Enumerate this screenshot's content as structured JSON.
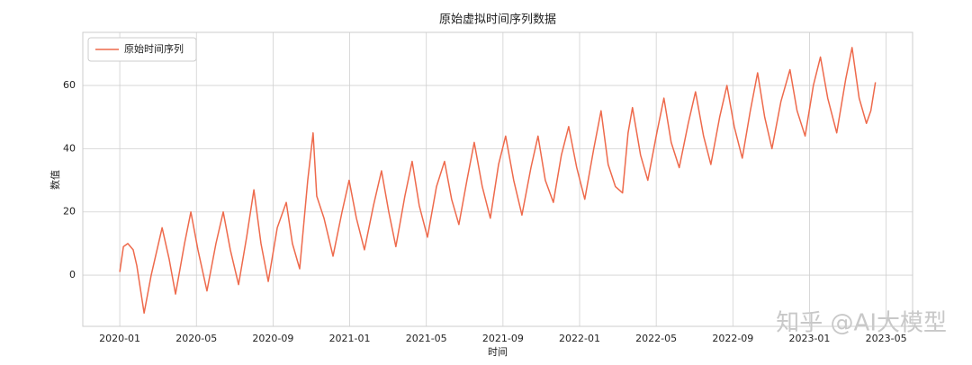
{
  "chart_data": {
    "type": "line",
    "title": "原始虚拟时间序列数据",
    "x_label": "时间",
    "y_label": "数值",
    "watermark": "知乎 @AI大模型",
    "x": [
      0,
      0.19,
      0.42,
      0.7,
      0.89,
      1.27,
      1.64,
      2.21,
      2.58,
      2.91,
      3.38,
      3.71,
      4.08,
      4.55,
      5.02,
      5.4,
      5.77,
      6.2,
      6.62,
      7.0,
      7.37,
      7.75,
      8.22,
      8.69,
      9.01,
      9.39,
      9.81,
      10.09,
      10.28,
      10.66,
      11.13,
      11.6,
      11.97,
      12.35,
      12.77,
      13.24,
      13.66,
      14.04,
      14.41,
      14.88,
      15.26,
      15.63,
      16.06,
      16.53,
      16.95,
      17.32,
      17.7,
      18.12,
      18.5,
      18.92,
      19.34,
      19.77,
      20.14,
      20.56,
      20.99,
      21.46,
      21.83,
      22.21,
      22.63,
      23.05,
      23.43,
      23.85,
      24.27,
      24.74,
      25.12,
      25.49,
      25.87,
      26.24,
      26.53,
      26.76,
      27.18,
      27.56,
      28.03,
      28.4,
      28.78,
      29.2,
      29.67,
      30.05,
      30.47,
      30.85,
      31.31,
      31.69,
      32.07,
      32.49,
      32.91,
      33.29,
      33.66,
      34.04,
      34.51,
      34.98,
      35.35,
      35.77,
      36.2,
      36.57,
      36.95,
      37.42,
      37.89,
      38.22,
      38.59,
      38.97,
      39.2,
      39.44
    ],
    "series": [
      {
        "name": "原始时间序列",
        "color": "#ee6a4c",
        "values": [
          1,
          9,
          10,
          8,
          3,
          -12,
          0,
          15,
          5,
          -6,
          10,
          20,
          8,
          -5,
          10,
          20,
          8,
          -3,
          12,
          27,
          10,
          -2,
          15,
          23,
          10,
          2,
          30,
          45,
          25,
          18,
          6,
          20,
          30,
          18,
          8,
          22,
          33,
          20,
          9,
          25,
          36,
          22,
          12,
          28,
          36,
          24,
          16,
          30,
          42,
          28,
          18,
          35,
          44,
          30,
          19,
          34,
          44,
          30,
          23,
          38,
          47,
          34,
          24,
          40,
          52,
          35,
          28,
          26,
          45,
          53,
          38,
          30,
          45,
          56,
          42,
          34,
          48,
          58,
          44,
          35,
          50,
          60,
          47,
          37,
          52,
          64,
          50,
          40,
          55,
          65,
          52,
          44,
          60,
          69,
          56,
          45,
          62,
          72,
          56,
          48,
          52,
          61
        ]
      }
    ],
    "xlim": [
      -1.93,
      41.38
    ],
    "xticks": [
      {
        "value": 0,
        "label": "2020-01"
      },
      {
        "value": 4,
        "label": "2020-05"
      },
      {
        "value": 8,
        "label": "2020-09"
      },
      {
        "value": 12,
        "label": "2021-01"
      },
      {
        "value": 16,
        "label": "2021-05"
      },
      {
        "value": 20,
        "label": "2021-09"
      },
      {
        "value": 24,
        "label": "2022-01"
      },
      {
        "value": 28,
        "label": "2022-05"
      },
      {
        "value": 32,
        "label": "2022-09"
      },
      {
        "value": 36,
        "label": "2023-01"
      },
      {
        "value": 40,
        "label": "2023-05"
      }
    ],
    "ylim": [
      -16.2,
      76.8
    ],
    "yticks": [
      0,
      20,
      40,
      60
    ],
    "grid": true,
    "legend": "upper-left"
  }
}
